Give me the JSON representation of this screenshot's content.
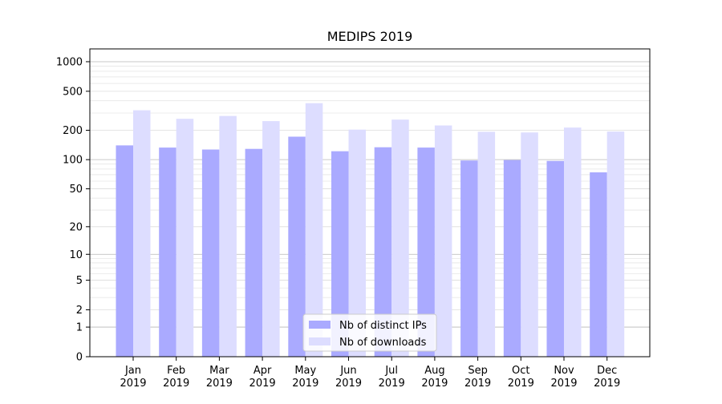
{
  "chart_data": {
    "type": "bar",
    "title": "MEDIPS 2019",
    "xlabel": "",
    "ylabel": "",
    "y_scale": "symlog",
    "y_ticks": [
      0,
      1,
      2,
      5,
      10,
      20,
      50,
      100,
      200,
      500,
      1000
    ],
    "ylim": [
      0,
      1350
    ],
    "grid": true,
    "legend_position": "lower-center",
    "categories": [
      [
        "Jan",
        "2019"
      ],
      [
        "Feb",
        "2019"
      ],
      [
        "Mar",
        "2019"
      ],
      [
        "Apr",
        "2019"
      ],
      [
        "May",
        "2019"
      ],
      [
        "Jun",
        "2019"
      ],
      [
        "Jul",
        "2019"
      ],
      [
        "Aug",
        "2019"
      ],
      [
        "Sep",
        "2019"
      ],
      [
        "Oct",
        "2019"
      ],
      [
        "Nov",
        "2019"
      ],
      [
        "Dec",
        "2019"
      ]
    ],
    "series": [
      {
        "name": "Nb of distinct IPs",
        "color": "#aaaaff",
        "values": [
          140,
          133,
          127,
          129,
          172,
          122,
          134,
          133,
          98,
          99,
          97,
          74
        ]
      },
      {
        "name": "Nb of downloads",
        "color": "#ddddff",
        "values": [
          320,
          262,
          280,
          248,
          378,
          203,
          257,
          224,
          193,
          190,
          213,
          194
        ]
      }
    ]
  }
}
